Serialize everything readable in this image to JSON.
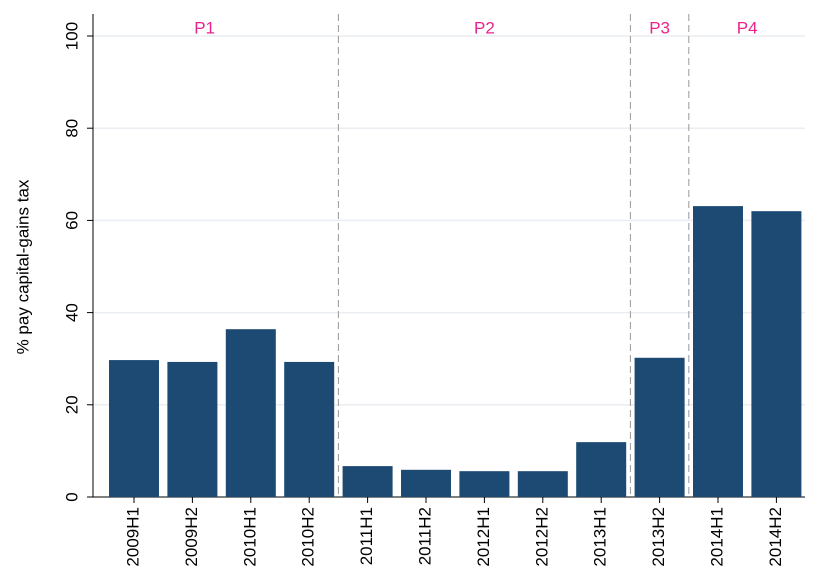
{
  "chart_data": {
    "type": "bar",
    "ylabel": "% pay capital-gains tax",
    "categories": [
      "2009H1",
      "2009H2",
      "2010H1",
      "2010H2",
      "2011H1",
      "2011H2",
      "2012H1",
      "2012H2",
      "2013H1",
      "2013H2",
      "2014H1",
      "2014H2"
    ],
    "values": [
      29.7,
      29.3,
      36.4,
      29.3,
      6.7,
      5.9,
      5.6,
      5.6,
      11.9,
      30.2,
      63.1,
      62.0
    ],
    "color": "#1c4a72",
    "ylim": [
      0,
      100
    ],
    "yticks": [
      0,
      20,
      40,
      60,
      80,
      100
    ],
    "grid": true,
    "annotations": [
      {
        "label": "P1",
        "first_category": "2009H1",
        "last_category": "2010H2"
      },
      {
        "label": "P2",
        "first_category": "2011H1",
        "last_category": "2013H1"
      },
      {
        "label": "P3",
        "first_category": "2013H2",
        "last_category": "2013H2"
      },
      {
        "label": "P4",
        "first_category": "2014H1",
        "last_category": "2014H2"
      }
    ],
    "annotation_color": "#e8248c"
  }
}
